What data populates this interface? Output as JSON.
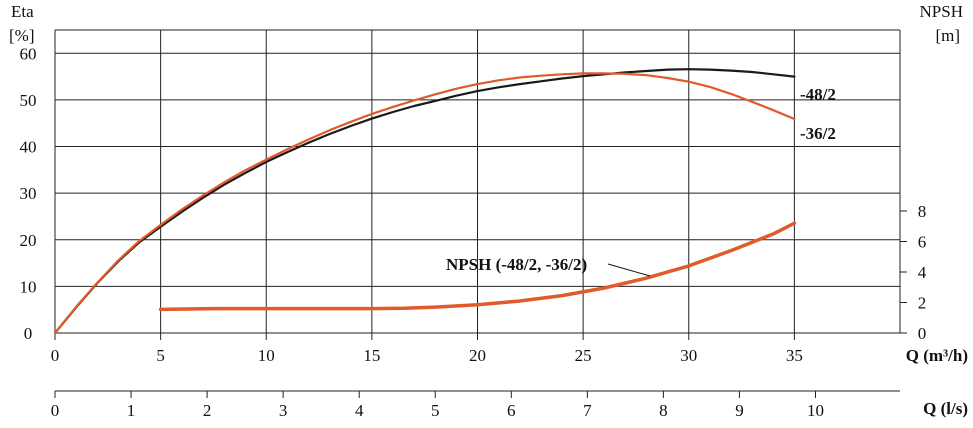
{
  "chart_data": {
    "type": "line",
    "left_axis": {
      "title_line1": "Eta",
      "title_line2": "[%]",
      "range": [
        0,
        65
      ],
      "ticks": [
        0,
        10,
        20,
        30,
        40,
        50,
        60
      ]
    },
    "right_axis": {
      "title_line1": "NPSH",
      "title_line2": "[m]",
      "range": [
        0,
        8
      ],
      "ticks": [
        0,
        2,
        4,
        6,
        8
      ]
    },
    "x_axis": {
      "title": "Q (m³/h)",
      "range": [
        0,
        40
      ],
      "ticks": [
        0,
        5,
        10,
        15,
        20,
        25,
        30,
        35
      ]
    },
    "x2_axis": {
      "title": "Q (l/s)",
      "ticks": [
        0,
        1,
        2,
        3,
        4,
        5,
        6,
        7,
        8,
        9,
        10
      ],
      "m3h_per_ls": 3.6
    },
    "colors": {
      "black_curve": "#1a1a1a",
      "orange_curve": "#e05a2b",
      "grid": "#222222"
    },
    "series": [
      {
        "name": "-48/2",
        "axis": "left",
        "color": "#1a1a1a",
        "x": [
          0,
          1,
          2,
          3,
          4,
          5,
          6,
          7,
          8,
          9,
          10,
          11,
          12,
          13,
          14,
          15,
          16,
          17,
          18,
          19,
          20,
          21,
          22,
          23,
          24,
          25,
          26,
          27,
          28,
          29,
          30,
          31,
          32,
          33,
          34,
          35
        ],
        "y": [
          0,
          5.5,
          10.7,
          15.4,
          19.5,
          22.8,
          26.0,
          29.0,
          31.8,
          34.3,
          36.7,
          38.8,
          40.8,
          42.7,
          44.4,
          46.0,
          47.4,
          48.7,
          49.8,
          50.9,
          51.9,
          52.7,
          53.4,
          54.0,
          54.6,
          55.1,
          55.5,
          55.9,
          56.2,
          56.5,
          56.6,
          56.5,
          56.3,
          56.0,
          55.5,
          55.0
        ]
      },
      {
        "name": "-36/2",
        "axis": "left",
        "color": "#e05a2b",
        "x": [
          0,
          1,
          2,
          3,
          4,
          5,
          6,
          7,
          8,
          9,
          10,
          11,
          12,
          13,
          14,
          15,
          16,
          17,
          18,
          19,
          20,
          21,
          22,
          23,
          24,
          25,
          26,
          27,
          28,
          29,
          30,
          31,
          32,
          33,
          34,
          35
        ],
        "y": [
          0,
          5.6,
          10.8,
          15.6,
          19.8,
          23.2,
          26.5,
          29.5,
          32.3,
          34.9,
          37.2,
          39.4,
          41.5,
          43.5,
          45.3,
          47.0,
          48.5,
          49.9,
          51.2,
          52.4,
          53.4,
          54.2,
          54.8,
          55.2,
          55.5,
          55.7,
          55.7,
          55.6,
          55.3,
          54.7,
          53.9,
          52.8,
          51.3,
          49.6,
          47.8,
          45.9
        ]
      },
      {
        "name": "NPSH (-48/2, -36/2)",
        "axis": "right",
        "color": "#e05a2b",
        "x": [
          5,
          7.5,
          10,
          12.5,
          15,
          16.5,
          18,
          20,
          22,
          24,
          26,
          28,
          30,
          32,
          34,
          35
        ],
        "y": [
          1.55,
          1.6,
          1.6,
          1.6,
          1.6,
          1.62,
          1.7,
          1.85,
          2.1,
          2.45,
          2.95,
          3.6,
          4.4,
          5.4,
          6.5,
          7.2
        ]
      }
    ],
    "labels": {
      "black": "-48/2",
      "orange": "-36/2",
      "npsh": "NPSH (-48/2, -36/2)"
    }
  }
}
